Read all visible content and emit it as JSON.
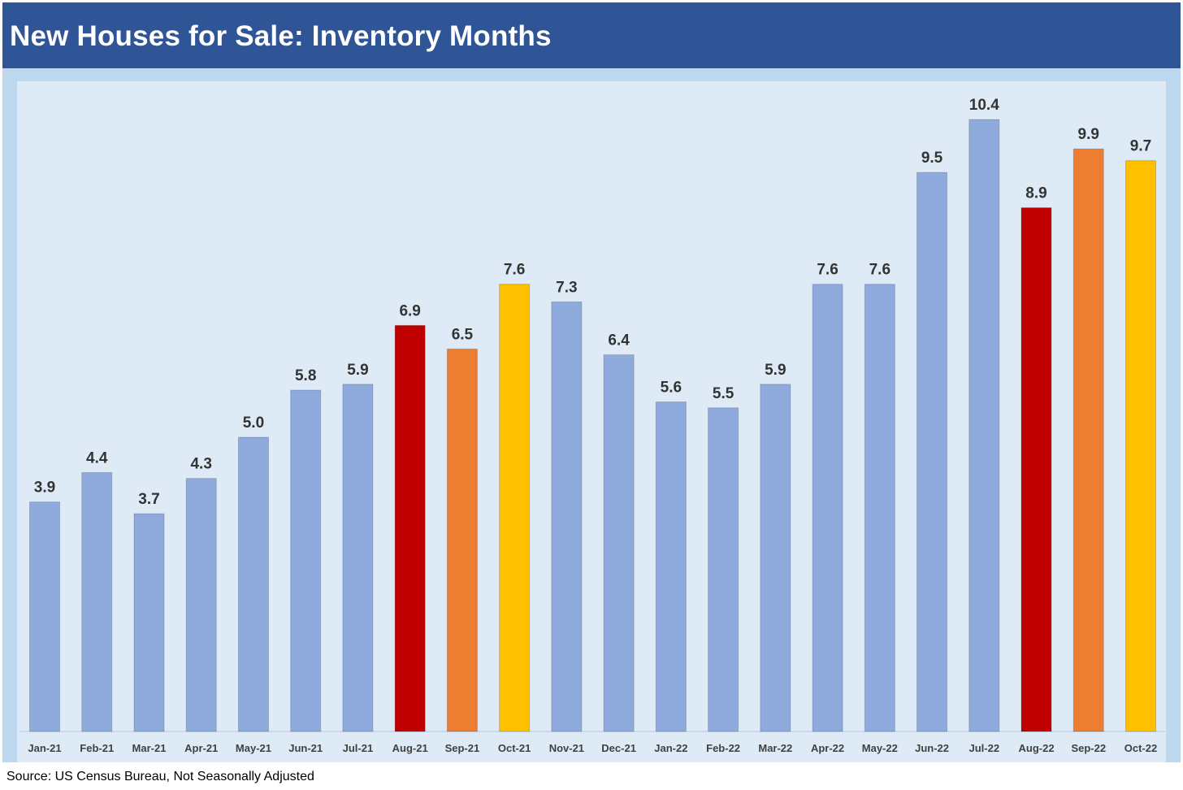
{
  "title": "New Houses for Sale: Inventory Months",
  "source": "Source: US Census Bureau, Not Seasonally Adjusted",
  "colors": {
    "title_bg": "#2f5597",
    "outer_bg": "#bdd7ee",
    "plot_bg": "#deebf7",
    "bar_default": "#8faadc",
    "bar_red": "#c00000",
    "bar_orange": "#ed7d31",
    "bar_yellow": "#ffc000"
  },
  "chart_data": {
    "type": "bar",
    "title": "New Houses for Sale: Inventory Months",
    "xlabel": "",
    "ylabel": "",
    "ylim": [
      0,
      10.4
    ],
    "grid": false,
    "legend": "none",
    "categories": [
      "Jan-21",
      "Feb-21",
      "Mar-21",
      "Apr-21",
      "May-21",
      "Jun-21",
      "Jul-21",
      "Aug-21",
      "Sep-21",
      "Oct-21",
      "Nov-21",
      "Dec-21",
      "Jan-22",
      "Feb-22",
      "Mar-22",
      "Apr-22",
      "May-22",
      "Jun-22",
      "Jul-22",
      "Aug-22",
      "Sep-22",
      "Oct-22"
    ],
    "values": [
      3.9,
      4.4,
      3.7,
      4.3,
      5.0,
      5.8,
      5.9,
      6.9,
      6.5,
      7.6,
      7.3,
      6.4,
      5.6,
      5.5,
      5.9,
      7.6,
      7.6,
      9.5,
      10.4,
      8.9,
      9.9,
      9.7
    ],
    "value_labels": [
      "3.9",
      "4.4",
      "3.7",
      "4.3",
      "5.0",
      "5.8",
      "5.9",
      "6.9",
      "6.5",
      "7.6",
      "7.3",
      "6.4",
      "5.6",
      "5.5",
      "5.9",
      "7.6",
      "7.6",
      "9.5",
      "10.4",
      "8.9",
      "9.9",
      "9.7"
    ],
    "bar_colors": [
      "default",
      "default",
      "default",
      "default",
      "default",
      "default",
      "default",
      "red",
      "orange",
      "yellow",
      "default",
      "default",
      "default",
      "default",
      "default",
      "default",
      "default",
      "default",
      "default",
      "red",
      "orange",
      "yellow"
    ]
  }
}
